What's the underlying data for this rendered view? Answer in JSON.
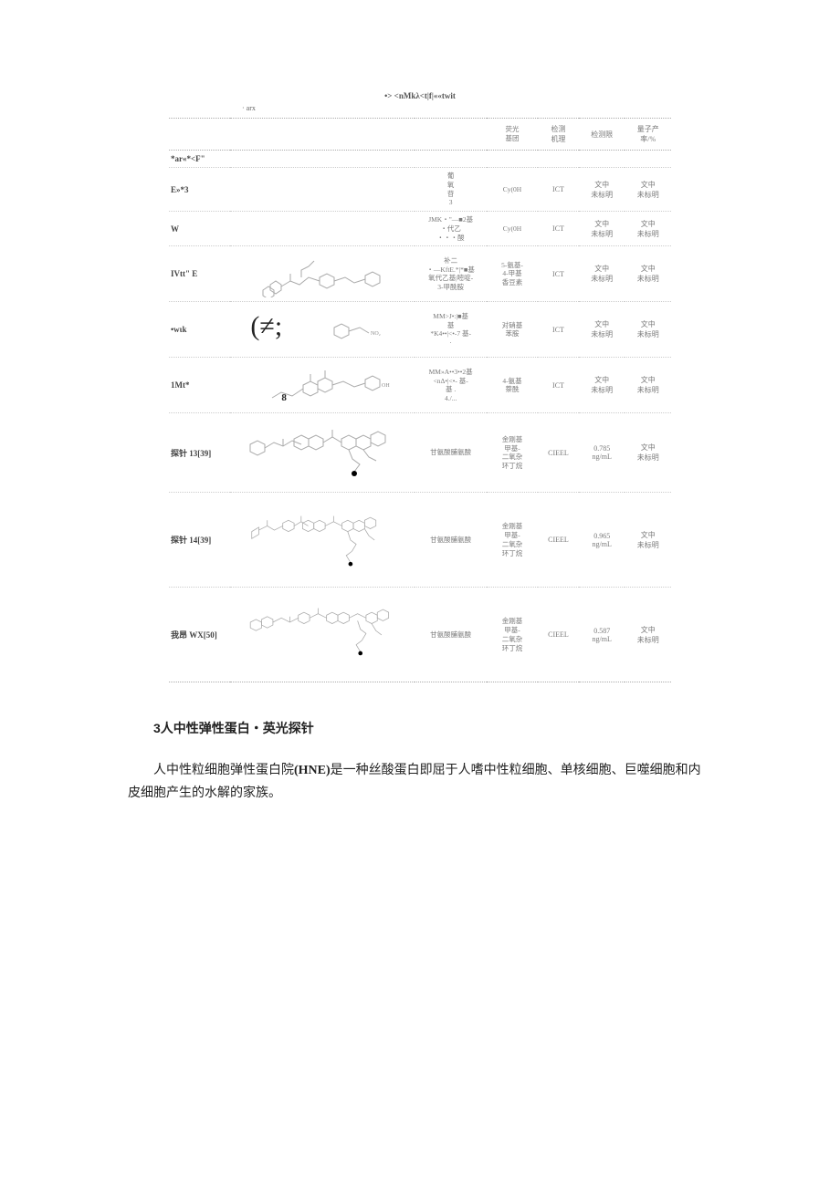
{
  "table": {
    "caption": "•> <nMkλ<t|f|««twit",
    "sub": "· arx",
    "headers": {
      "label": "",
      "structure": "",
      "mechanism": "",
      "fluor_group": "荧光\n基团",
      "dye": "检测\n机理",
      "limit": "检测限",
      "yield": "量子产\n率/%"
    },
    "rows": [
      {
        "label": "*ar«*<F\"",
        "mech": "",
        "fluor": "",
        "dye": "",
        "limit": "",
        "yield": "",
        "struct": "none"
      },
      {
        "label": "E»*3",
        "mech": "葡\n氧\n苷\n3",
        "fluor": "Cy(0H",
        "dye": "ICT",
        "limit": "文中\n未标明",
        "yield": "文中\n未标明",
        "struct": "none"
      },
      {
        "label": "W",
        "mech": "JMK・\"—■2基\n・代乙\n・・・酸",
        "fluor": "Cy(0H",
        "dye": "ICT",
        "limit": "文中\n未标明",
        "yield": "文中\n未标明",
        "struct": "none"
      },
      {
        "label": "IVtt\" E",
        "mech": "补二\n・—KftE.*|*■基\n氧代乙基|嘧啶-\n3-甲酰胺",
        "fluor": "5-氨基-\n4-甲基\n香豆素",
        "dye": "ICT",
        "limit": "文中\n未标明",
        "yield": "文中\n未标明",
        "struct": "mol1"
      },
      {
        "label": "•wιk",
        "mech": "MM>J•:|■基\n基\n*K4••|<•-7 基-\n·",
        "fluor": "对硝基\n苯胺",
        "dye": "ICT",
        "limit": "文中\n未标明",
        "yield": "文中\n未标明",
        "struct": "mol2"
      },
      {
        "label": "1Mt*",
        "mech": "MM»A••3••2基\n<nΔ•|<•- 基-\n基 .\n4./...",
        "fluor": "4-氨基\n萘酰",
        "dye": "ICT",
        "limit": "文中\n未标明",
        "yield": "文中\n未标明",
        "struct": "mol3"
      },
      {
        "label": "探针 13[39]",
        "mech": "甘氨酸脯氨酸",
        "fluor": "金刚基\n甲基-\n二氧杂\n环丁烷",
        "dye": "CIEEL",
        "limit": "0.785\nng/mL",
        "yield": "文中\n未标明",
        "struct": "mol4"
      },
      {
        "label": "探针 14[39]",
        "mech": "甘氨酸脯氨酸",
        "fluor": "金刚基\n甲基-\n二氧杂\n环丁烷",
        "dye": "CIEEL",
        "limit": "0.965\nng/mL",
        "yield": "文中\n未标明",
        "struct": "mol5"
      },
      {
        "label": "我昂 WX[50]",
        "mech": "甘氨酸脯氨酸",
        "fluor": "金刚基\n甲基-\n二氧杂\n环丁烷",
        "dye": "CIEEL",
        "limit": "0.587\nng/mL",
        "yield": "文中\n未标明",
        "struct": "mol6"
      }
    ]
  },
  "section": {
    "number": "3",
    "title": "人中性弹性蛋白・英光探针"
  },
  "paragraph": {
    "pre": "人中性粒细胞弹性蛋白院",
    "latin": "(HNE)",
    "post": "是一种丝酸蛋白即屈于人嗜中性粒细胞、单核细胞、巨噬细胞和内皮细胞产生的水解的家族。"
  },
  "colors": {
    "text_body": "#222222",
    "text_table": "#7a7a7a",
    "border": "#aaaaaa",
    "background": "#ffffff",
    "mol_stroke": "#aaaaaa"
  }
}
